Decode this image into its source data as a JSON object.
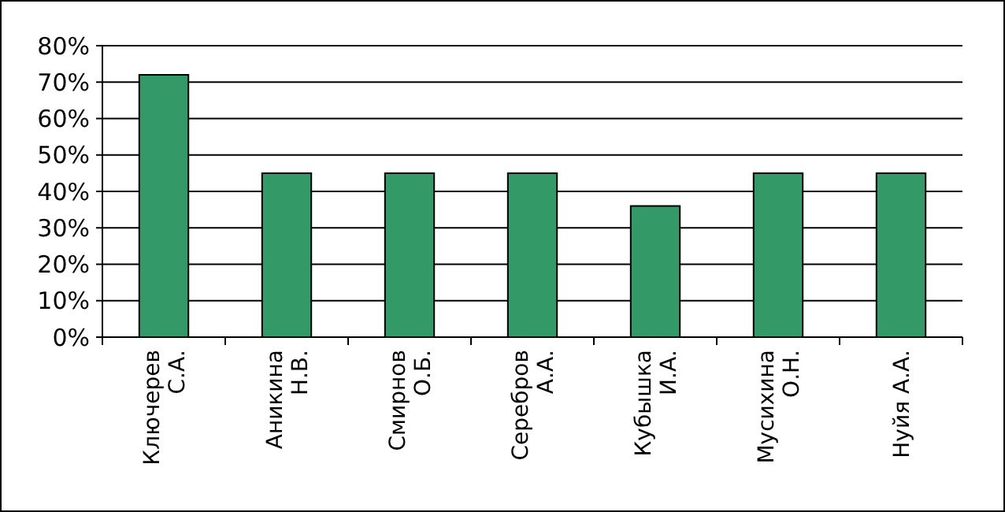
{
  "chart_data": {
    "type": "bar",
    "categories": [
      "Ключерев\nС.А.",
      "Аникина\nН.В.",
      "Смирнов\nО.Б.",
      "Серебров\nА.А.",
      "Кубышка\nИ.А.",
      "Мусихина\nО.Н.",
      "Нуйя А.А."
    ],
    "values": [
      72,
      45,
      45,
      45,
      36,
      45,
      45
    ],
    "color": "#339966",
    "ylim": [
      0,
      80
    ],
    "yticks": [
      {
        "value": 0,
        "label": "0%"
      },
      {
        "value": 10,
        "label": "10%"
      },
      {
        "value": 20,
        "label": "20%"
      },
      {
        "value": 30,
        "label": "30%"
      },
      {
        "value": 40,
        "label": "40%"
      },
      {
        "value": 50,
        "label": "50%"
      },
      {
        "value": 60,
        "label": "60%"
      },
      {
        "value": 70,
        "label": "70%"
      },
      {
        "value": 80,
        "label": "80%"
      }
    ],
    "grid": "y"
  }
}
